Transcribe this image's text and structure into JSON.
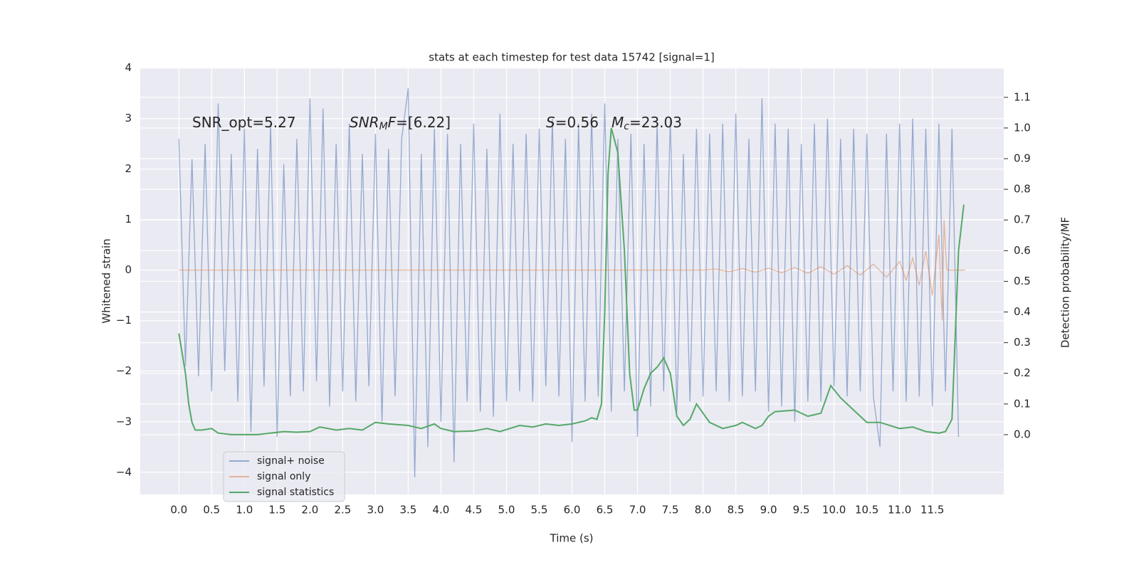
{
  "chart_data": {
    "type": "line",
    "title": "stats at each timestep for test data 15742 [signal=1]",
    "xlabel": "Time (s)",
    "ylabel": "Whitened strain",
    "y2label": "Detection probability/MF",
    "xlim": [
      -0.59,
      12.59
    ],
    "ylim": [
      -4.44,
      4.01
    ],
    "y2lim": [
      -0.195,
      1.197
    ],
    "xticks": [
      {
        "value": 0,
        "label": "0.0"
      },
      0.5,
      {
        "value": 1,
        "label": "1.0"
      },
      1.5,
      {
        "value": 2,
        "label": "2.0"
      },
      2.5,
      {
        "value": 3,
        "label": "3.0"
      },
      3.5,
      {
        "value": 4,
        "label": "4.0"
      },
      4.5,
      {
        "value": 5,
        "label": "5.0"
      },
      5.5,
      {
        "value": 6,
        "label": "6.0"
      },
      6.5,
      {
        "value": 7,
        "label": "7.0"
      },
      7.5,
      {
        "value": 8,
        "label": "8.0"
      },
      8.5,
      {
        "value": 9,
        "label": "9.0"
      },
      9.5,
      {
        "value": 10,
        "label": "10.0"
      },
      10.5,
      {
        "value": 11,
        "label": "11.0"
      },
      11.5
    ],
    "yticks": [
      {
        "value": -4,
        "label": "−4"
      },
      {
        "value": -3,
        "label": "−3"
      },
      {
        "value": -2,
        "label": "−2"
      },
      {
        "value": -1,
        "label": "−1"
      },
      0,
      1,
      2,
      3,
      4
    ],
    "y2ticks": [
      {
        "value": 0,
        "label": "0.0"
      },
      0.1,
      0.2,
      0.3,
      0.4,
      0.5,
      0.6,
      0.7,
      0.8,
      0.9,
      {
        "value": 1,
        "label": "1.0"
      },
      1.1
    ],
    "grid": true,
    "legend": "lower left",
    "annotations": [
      [
        {
          "text": "SNR_opt=5.27",
          "style": "normal"
        }
      ],
      [
        {
          "text": "SNR",
          "style": "italic"
        },
        {
          "text": "M",
          "style": "sub"
        },
        {
          "text": "F",
          "style": "italic"
        },
        {
          "text": "=[6.22]",
          "style": "normal"
        }
      ],
      [
        {
          "text": "S",
          "style": "italic"
        },
        {
          "text": "=0.56",
          "style": "normal"
        }
      ],
      [
        {
          "text": "M",
          "style": "italic"
        },
        {
          "text": "c",
          "style": "sub"
        },
        {
          "text": "=23.03",
          "style": "normal"
        }
      ]
    ],
    "series": [
      {
        "name": "signal+ noise",
        "color": "#4c72b0",
        "opacity": 0.55,
        "x": [
          0.0,
          0.1,
          0.2,
          0.3,
          0.4,
          0.5,
          0.6,
          0.7,
          0.8,
          0.9,
          1.0,
          1.1,
          1.2,
          1.3,
          1.4,
          1.5,
          1.6,
          1.7,
          1.8,
          1.9,
          2.0,
          2.1,
          2.2,
          2.3,
          2.4,
          2.5,
          2.6,
          2.7,
          2.8,
          2.9,
          3.0,
          3.1,
          3.2,
          3.3,
          3.4,
          3.5,
          3.6,
          3.7,
          3.8,
          3.9,
          4.0,
          4.1,
          4.2,
          4.3,
          4.4,
          4.5,
          4.6,
          4.7,
          4.8,
          4.9,
          5.0,
          5.1,
          5.2,
          5.3,
          5.4,
          5.5,
          5.6,
          5.7,
          5.8,
          5.9,
          6.0,
          6.1,
          6.2,
          6.3,
          6.4,
          6.5,
          6.6,
          6.7,
          6.8,
          6.9,
          7.0,
          7.1,
          7.2,
          7.3,
          7.4,
          7.5,
          7.6,
          7.7,
          7.8,
          7.9,
          8.0,
          8.1,
          8.2,
          8.3,
          8.4,
          8.5,
          8.6,
          8.7,
          8.8,
          8.9,
          9.0,
          9.1,
          9.2,
          9.3,
          9.4,
          9.5,
          9.6,
          9.7,
          9.8,
          9.9,
          10.0,
          10.1,
          10.2,
          10.3,
          10.4,
          10.5,
          10.6,
          10.7,
          10.8,
          10.9,
          11.0,
          11.1,
          11.2,
          11.3,
          11.4,
          11.5,
          11.6,
          11.7,
          11.8,
          11.9
        ],
        "values": [
          2.6,
          -1.9,
          2.2,
          -2.1,
          2.5,
          -2.4,
          3.3,
          -2.0,
          2.3,
          -2.6,
          2.8,
          -3.2,
          2.4,
          -2.3,
          2.9,
          -3.3,
          2.1,
          -2.5,
          2.6,
          -2.4,
          3.4,
          -2.2,
          3.2,
          -2.7,
          2.5,
          -2.4,
          2.9,
          -2.6,
          2.3,
          -2.3,
          2.7,
          -3.0,
          2.4,
          -2.5,
          2.6,
          3.6,
          -4.1,
          2.3,
          -3.5,
          2.8,
          -3.0,
          2.7,
          -3.8,
          2.5,
          -2.6,
          2.9,
          -2.8,
          2.4,
          -2.9,
          3.1,
          -2.6,
          2.5,
          -2.4,
          2.7,
          -2.6,
          2.8,
          -2.3,
          3.0,
          -2.5,
          2.6,
          -3.4,
          2.9,
          -2.6,
          3.1,
          -2.5,
          3.3,
          -2.8,
          2.6,
          -2.4,
          2.7,
          -3.3,
          2.5,
          -2.7,
          2.9,
          -2.4,
          3.0,
          -2.8,
          2.3,
          -2.6,
          2.8,
          -2.5,
          2.7,
          -2.4,
          2.9,
          -2.6,
          3.1,
          -2.5,
          2.6,
          -2.4,
          3.4,
          -2.8,
          2.9,
          -2.7,
          2.8,
          -3.0,
          2.5,
          -2.6,
          2.9,
          -2.6,
          3.0,
          -2.3,
          2.6,
          -2.5,
          2.8,
          -2.4,
          2.7,
          -2.5,
          -3.5,
          2.7,
          -2.4,
          2.9,
          -2.6,
          3.0,
          -2.5,
          2.8,
          -2.7,
          2.9,
          -2.4,
          2.8,
          -3.3
        ]
      },
      {
        "name": "signal only",
        "color": "#dd8452",
        "opacity": 0.55,
        "x": [
          0.0,
          8.0,
          8.2,
          8.4,
          8.6,
          8.8,
          9.0,
          9.2,
          9.4,
          9.6,
          9.8,
          10.0,
          10.2,
          10.4,
          10.6,
          10.8,
          11.0,
          11.1,
          11.2,
          11.3,
          11.4,
          11.5,
          11.6,
          11.65,
          11.68,
          11.72,
          12.0
        ],
        "values": [
          0,
          0,
          0.02,
          -0.03,
          0.03,
          -0.04,
          0.04,
          -0.05,
          0.05,
          -0.06,
          0.07,
          -0.08,
          0.09,
          -0.1,
          0.12,
          -0.14,
          0.17,
          -0.2,
          0.24,
          -0.3,
          0.38,
          -0.5,
          0.7,
          -1.0,
          1.0,
          0,
          0
        ]
      },
      {
        "name": "signal statistics",
        "color": "#55a868",
        "opacity": 1,
        "axis": "y2",
        "x": [
          0.0,
          0.1,
          0.15,
          0.2,
          0.25,
          0.35,
          0.5,
          0.6,
          0.8,
          1.0,
          1.2,
          1.4,
          1.6,
          1.8,
          2.0,
          2.15,
          2.4,
          2.6,
          2.8,
          3.0,
          3.2,
          3.5,
          3.7,
          3.9,
          4.0,
          4.2,
          4.5,
          4.7,
          4.9,
          5.2,
          5.4,
          5.6,
          5.8,
          6.0,
          6.2,
          6.3,
          6.38,
          6.45,
          6.5,
          6.55,
          6.6,
          6.7,
          6.8,
          6.88,
          6.95,
          7.0,
          7.1,
          7.2,
          7.3,
          7.4,
          7.5,
          7.6,
          7.7,
          7.8,
          7.9,
          8.0,
          8.1,
          8.3,
          8.5,
          8.6,
          8.7,
          8.8,
          8.9,
          9.0,
          9.1,
          9.4,
          9.6,
          9.8,
          9.95,
          10.1,
          10.3,
          10.5,
          10.7,
          11.0,
          11.2,
          11.4,
          11.6,
          11.7,
          11.8,
          11.9,
          11.98
        ],
        "values": [
          0.33,
          0.2,
          0.1,
          0.04,
          0.015,
          0.015,
          0.02,
          0.005,
          0.0,
          0.0,
          0.0,
          0.005,
          0.01,
          0.008,
          0.01,
          0.025,
          0.015,
          0.02,
          0.015,
          0.04,
          0.035,
          0.03,
          0.02,
          0.035,
          0.02,
          0.01,
          0.012,
          0.02,
          0.01,
          0.03,
          0.025,
          0.035,
          0.03,
          0.035,
          0.045,
          0.055,
          0.05,
          0.1,
          0.4,
          0.85,
          1.0,
          0.92,
          0.6,
          0.2,
          0.08,
          0.08,
          0.15,
          0.2,
          0.22,
          0.25,
          0.2,
          0.06,
          0.03,
          0.05,
          0.1,
          0.07,
          0.04,
          0.02,
          0.03,
          0.04,
          0.03,
          0.02,
          0.03,
          0.06,
          0.075,
          0.08,
          0.06,
          0.07,
          0.16,
          0.12,
          0.08,
          0.04,
          0.04,
          0.02,
          0.025,
          0.01,
          0.005,
          0.01,
          0.05,
          0.6,
          0.75
        ]
      }
    ]
  }
}
